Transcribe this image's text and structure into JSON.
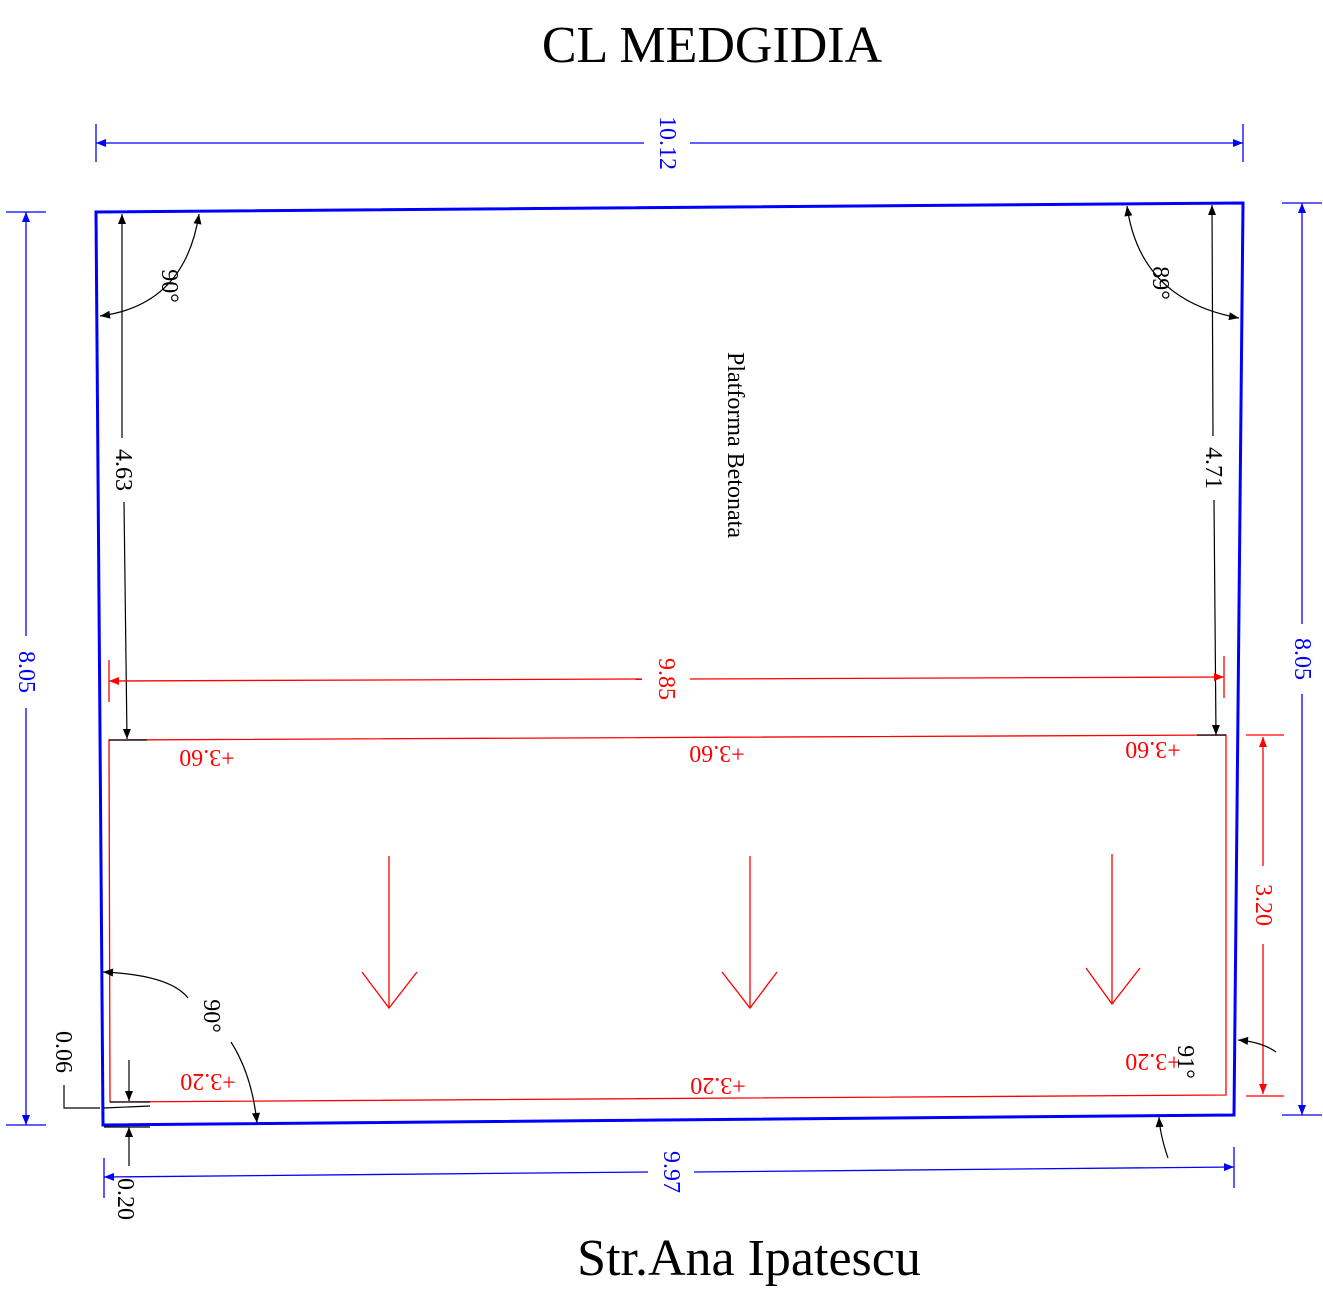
{
  "title": "CL MEDGIDIA",
  "street": "Str.Ana Ipatescu",
  "area_label": "Platforma Betonata",
  "dimensions": {
    "top_width": "10.12",
    "bottom_width": "9.97",
    "left_height": "8.05",
    "right_height": "8.05",
    "inner_width": "9.85",
    "left_inner": "4.63",
    "right_inner": "4.71",
    "strip_depth": "3.20",
    "offset_small": "0.06",
    "offset_bottom": "0.20"
  },
  "angles": {
    "top_left": "90°",
    "top_right": "89°",
    "bottom_left": "90°",
    "bottom_right": "91°"
  },
  "levels": {
    "top_left": "+3.60",
    "top_mid": "+3.60",
    "top_right": "+3.60",
    "bottom_left": "+3.20",
    "bottom_mid": "+3.20",
    "bottom_right": "+3.20"
  },
  "colors": {
    "boundary": "#0000ff",
    "survey": "#ff0000",
    "annotation": "#000000"
  }
}
